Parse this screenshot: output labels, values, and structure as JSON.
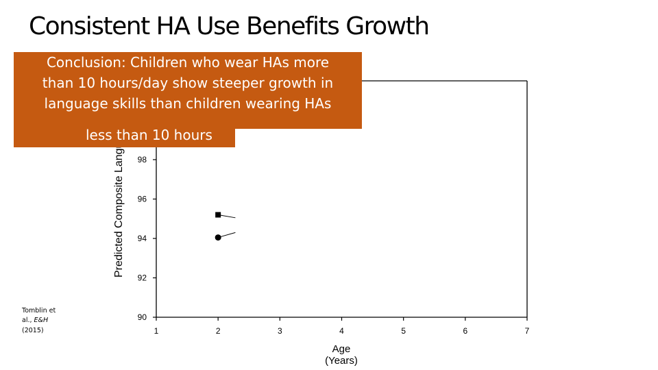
{
  "slide": {
    "title": "Consistent HA Use Benefits Growth",
    "callout_lines": [
      "Conclusion: Children who wear HAs more",
      "than 10 hours/day show steeper growth in",
      "language skills than children wearing HAs",
      "less than 10 hours"
    ],
    "citation": {
      "line1": "Tomblin et",
      "line2_prefix": "al., ",
      "journal": "E&H",
      "year": "(2015)"
    },
    "colors": {
      "callout": "#c55a11"
    }
  },
  "chart_data": {
    "type": "line",
    "ylabel": "Predicted Composite Language",
    "xlabel_line1": "Age",
    "xlabel_line2": "(Years)",
    "x_ticks": [
      "1",
      "2",
      "3",
      "4",
      "5",
      "6",
      "7"
    ],
    "y_ticks": [
      "90",
      "92",
      "94",
      "96",
      "98"
    ],
    "xlim": [
      1,
      7
    ],
    "ylim": [
      90,
      102
    ],
    "series": [
      {
        "marker": "square",
        "x": [
          2,
          2.28
        ],
        "values": [
          95.2,
          95.05
        ]
      },
      {
        "marker": "circle",
        "x": [
          2,
          2.28
        ],
        "values": [
          94.05,
          94.3
        ]
      }
    ]
  }
}
